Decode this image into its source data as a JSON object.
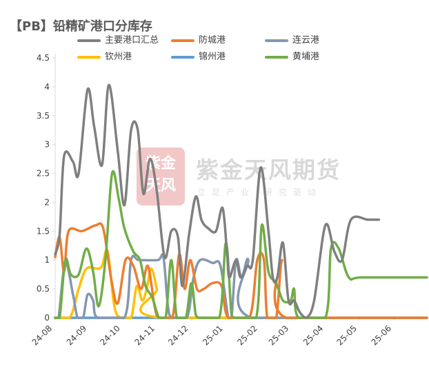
{
  "title": "【PB】铅精矿港口分库存",
  "watermark": {
    "name": "紫金天风期货",
    "slogan": "立足产业 研究驱动",
    "seal_text": "紫金\n天风"
  },
  "chart_data": {
    "type": "line",
    "title": "【PB】铅精矿港口分库存",
    "xlabel": "",
    "ylabel": "",
    "ylim": [
      0,
      4.5
    ],
    "yticks": [
      "0",
      "0.5",
      "1",
      "1.5",
      "2",
      "2.5",
      "3",
      "3.5",
      "4",
      "4.5"
    ],
    "x_tick_labels": [
      "24-08",
      "24-09",
      "24-10",
      "24-11",
      "24-12",
      "25-01",
      "25-02",
      "25-03",
      "25-04",
      "25-05",
      "25-06"
    ],
    "x_domain": [
      "2024-08-01",
      "2025-06-30"
    ],
    "grid": false,
    "legend_position": "top",
    "smooth": true,
    "series": [
      {
        "name": "主要港口汇总",
        "color": "#7f7f7f",
        "points": [
          [
            "2024-08-01",
            1.1
          ],
          [
            "2024-08-05",
            1.45
          ],
          [
            "2024-08-09",
            2.8
          ],
          [
            "2024-08-17",
            2.7
          ],
          [
            "2024-08-22",
            2.5
          ],
          [
            "2024-08-30",
            3.95
          ],
          [
            "2024-09-05",
            3.3
          ],
          [
            "2024-09-12",
            2.65
          ],
          [
            "2024-09-18",
            4.03
          ],
          [
            "2024-09-26",
            2.9
          ],
          [
            "2024-10-02",
            1.95
          ],
          [
            "2024-10-08",
            3.25
          ],
          [
            "2024-10-14",
            3.25
          ],
          [
            "2024-10-19",
            2.15
          ],
          [
            "2024-10-25",
            2.75
          ],
          [
            "2024-10-31",
            2.2
          ],
          [
            "2024-11-07",
            1.05
          ],
          [
            "2024-11-13",
            1.5
          ],
          [
            "2024-11-19",
            1.4
          ],
          [
            "2024-11-23",
            0.55
          ],
          [
            "2024-11-29",
            1.45
          ],
          [
            "2024-12-05",
            2.1
          ],
          [
            "2024-12-10",
            1.7
          ],
          [
            "2024-12-16",
            1.55
          ],
          [
            "2024-12-23",
            1.5
          ],
          [
            "2024-12-29",
            1.9
          ],
          [
            "2025-01-02",
            1.1
          ],
          [
            "2025-01-04",
            0.7
          ],
          [
            "2025-01-10",
            1.0
          ],
          [
            "2025-01-14",
            0.7
          ],
          [
            "2025-01-20",
            0.9
          ],
          [
            "2025-01-25",
            1.0
          ],
          [
            "2025-02-01",
            2.6
          ],
          [
            "2025-02-08",
            1.5
          ],
          [
            "2025-02-12",
            0.7
          ],
          [
            "2025-02-16",
            0.7
          ],
          [
            "2025-02-21",
            1.3
          ],
          [
            "2025-02-26",
            0.3
          ],
          [
            "2025-03-03",
            0.3
          ],
          [
            "2025-03-08",
            0.1
          ],
          [
            "2025-03-14",
            0.0
          ],
          [
            "2025-03-21",
            0.3
          ],
          [
            "2025-03-31",
            1.6
          ],
          [
            "2025-04-08",
            1.15
          ],
          [
            "2025-04-15",
            1.0
          ],
          [
            "2025-04-23",
            1.7
          ],
          [
            "2025-05-08",
            1.7
          ],
          [
            "2025-05-18",
            1.7
          ]
        ]
      },
      {
        "name": "防城港",
        "color": "#ed7d31",
        "points": [
          [
            "2024-08-01",
            1.05
          ],
          [
            "2024-08-05",
            1.4
          ],
          [
            "2024-08-09",
            0.8
          ],
          [
            "2024-08-13",
            1.5
          ],
          [
            "2024-08-25",
            1.5
          ],
          [
            "2024-09-06",
            1.6
          ],
          [
            "2024-09-13",
            1.55
          ],
          [
            "2024-09-20",
            0.7
          ],
          [
            "2024-09-26",
            0.25
          ],
          [
            "2024-10-03",
            1.0
          ],
          [
            "2024-10-10",
            0.9
          ],
          [
            "2024-10-17",
            0.5
          ],
          [
            "2024-10-23",
            0.9
          ],
          [
            "2024-10-29",
            0.2
          ],
          [
            "2024-11-02",
            0.0
          ],
          [
            "2024-11-14",
            0.0
          ],
          [
            "2024-11-20",
            1.1
          ],
          [
            "2024-11-25",
            0.5
          ],
          [
            "2024-11-30",
            1.0
          ],
          [
            "2024-12-06",
            0.5
          ],
          [
            "2024-12-12",
            0.5
          ],
          [
            "2024-12-20",
            0.6
          ],
          [
            "2024-12-28",
            0.55
          ],
          [
            "2025-01-03",
            0.0
          ],
          [
            "2025-01-22",
            0.0
          ],
          [
            "2025-01-29",
            1.0
          ],
          [
            "2025-02-04",
            1.0
          ],
          [
            "2025-02-07",
            0.0
          ],
          [
            "2025-02-15",
            0.0
          ],
          [
            "2025-02-20",
            1.0
          ],
          [
            "2025-02-24",
            0.0
          ],
          [
            "2025-06-30",
            0.0
          ]
        ]
      },
      {
        "name": "连云港",
        "color": "#8497b0",
        "points": [
          [
            "2024-08-01",
            0.0
          ],
          [
            "2024-08-04",
            0.0
          ],
          [
            "2024-08-10",
            0.95
          ],
          [
            "2024-08-17",
            0.4
          ],
          [
            "2024-08-21",
            0.0
          ],
          [
            "2024-08-26",
            0.0
          ],
          [
            "2024-08-30",
            0.4
          ],
          [
            "2024-09-04",
            0.3
          ],
          [
            "2024-09-08",
            0.0
          ],
          [
            "2024-10-02",
            0.0
          ],
          [
            "2024-10-08",
            1.0
          ],
          [
            "2024-10-15",
            1.0
          ],
          [
            "2024-11-01",
            1.0
          ],
          [
            "2024-11-06",
            1.05
          ],
          [
            "2024-11-10",
            0.2
          ],
          [
            "2024-11-14",
            0.0
          ],
          [
            "2024-11-27",
            0.0
          ],
          [
            "2024-12-03",
            0.7
          ],
          [
            "2024-12-09",
            1.0
          ],
          [
            "2024-12-20",
            0.95
          ],
          [
            "2024-12-27",
            0.9
          ],
          [
            "2025-01-03",
            0.0
          ],
          [
            "2025-01-06",
            0.0
          ],
          [
            "2025-01-10",
            1.0
          ],
          [
            "2025-01-15",
            0.7
          ],
          [
            "2025-01-21",
            1.0
          ],
          [
            "2025-01-24",
            0.0
          ],
          [
            "2025-06-30",
            0.0
          ]
        ]
      },
      {
        "name": "钦州港",
        "color": "#ffc000",
        "points": [
          [
            "2024-08-01",
            0.0
          ],
          [
            "2024-08-14",
            0.0
          ],
          [
            "2024-08-22",
            0.5
          ],
          [
            "2024-08-29",
            0.85
          ],
          [
            "2024-09-08",
            0.85
          ],
          [
            "2024-09-12",
            0.9
          ],
          [
            "2024-09-17",
            1.15
          ],
          [
            "2024-09-23",
            0.2
          ],
          [
            "2024-09-29",
            0.0
          ],
          [
            "2024-10-08",
            0.0
          ],
          [
            "2024-10-13",
            0.55
          ],
          [
            "2024-10-18",
            0.3
          ],
          [
            "2024-10-22",
            0.5
          ],
          [
            "2024-10-26",
            0.85
          ],
          [
            "2024-10-31",
            0.5
          ],
          [
            "2024-11-04",
            0.0
          ],
          [
            "2025-06-30",
            0.0
          ]
        ]
      },
      {
        "name": "锦州港",
        "color": "#5b9bd5",
        "points": [
          [
            "2024-08-01",
            0.0
          ],
          [
            "2025-06-30",
            0.0
          ]
        ]
      },
      {
        "name": "黄埔港",
        "color": "#70ad47",
        "points": [
          [
            "2024-08-01",
            0.0
          ],
          [
            "2024-08-05",
            0.0
          ],
          [
            "2024-08-10",
            1.0
          ],
          [
            "2024-08-15",
            0.75
          ],
          [
            "2024-08-22",
            0.75
          ],
          [
            "2024-08-29",
            1.2
          ],
          [
            "2024-09-04",
            0.8
          ],
          [
            "2024-09-09",
            0.2
          ],
          [
            "2024-09-15",
            1.0
          ],
          [
            "2024-09-21",
            2.5
          ],
          [
            "2024-09-27",
            2.05
          ],
          [
            "2024-10-02",
            1.55
          ],
          [
            "2024-10-10",
            1.15
          ],
          [
            "2024-10-16",
            1.0
          ],
          [
            "2024-10-21",
            0.55
          ],
          [
            "2024-10-27",
            0.35
          ],
          [
            "2024-11-02",
            0.0
          ],
          [
            "2024-11-08",
            0.0
          ],
          [
            "2024-11-13",
            1.0
          ],
          [
            "2024-11-18",
            0.0
          ],
          [
            "2024-11-26",
            0.0
          ],
          [
            "2024-12-01",
            0.6
          ],
          [
            "2024-12-05",
            0.05
          ],
          [
            "2024-12-09",
            0.0
          ],
          [
            "2024-12-26",
            0.0
          ],
          [
            "2025-01-01",
            1.3
          ],
          [
            "2025-01-06",
            0.05
          ],
          [
            "2025-01-10",
            0.0
          ],
          [
            "2025-01-28",
            0.0
          ],
          [
            "2025-02-02",
            1.6
          ],
          [
            "2025-02-08",
            0.8
          ],
          [
            "2025-02-15",
            0.6
          ],
          [
            "2025-02-21",
            0.3
          ],
          [
            "2025-02-28",
            0.3
          ],
          [
            "2025-03-03",
            0.5
          ],
          [
            "2025-03-07",
            0.0
          ],
          [
            "2025-03-31",
            0.0
          ],
          [
            "2025-04-05",
            1.2
          ],
          [
            "2025-04-12",
            1.2
          ],
          [
            "2025-04-21",
            0.7
          ],
          [
            "2025-05-03",
            0.7
          ],
          [
            "2025-06-30",
            0.7
          ]
        ]
      }
    ]
  }
}
